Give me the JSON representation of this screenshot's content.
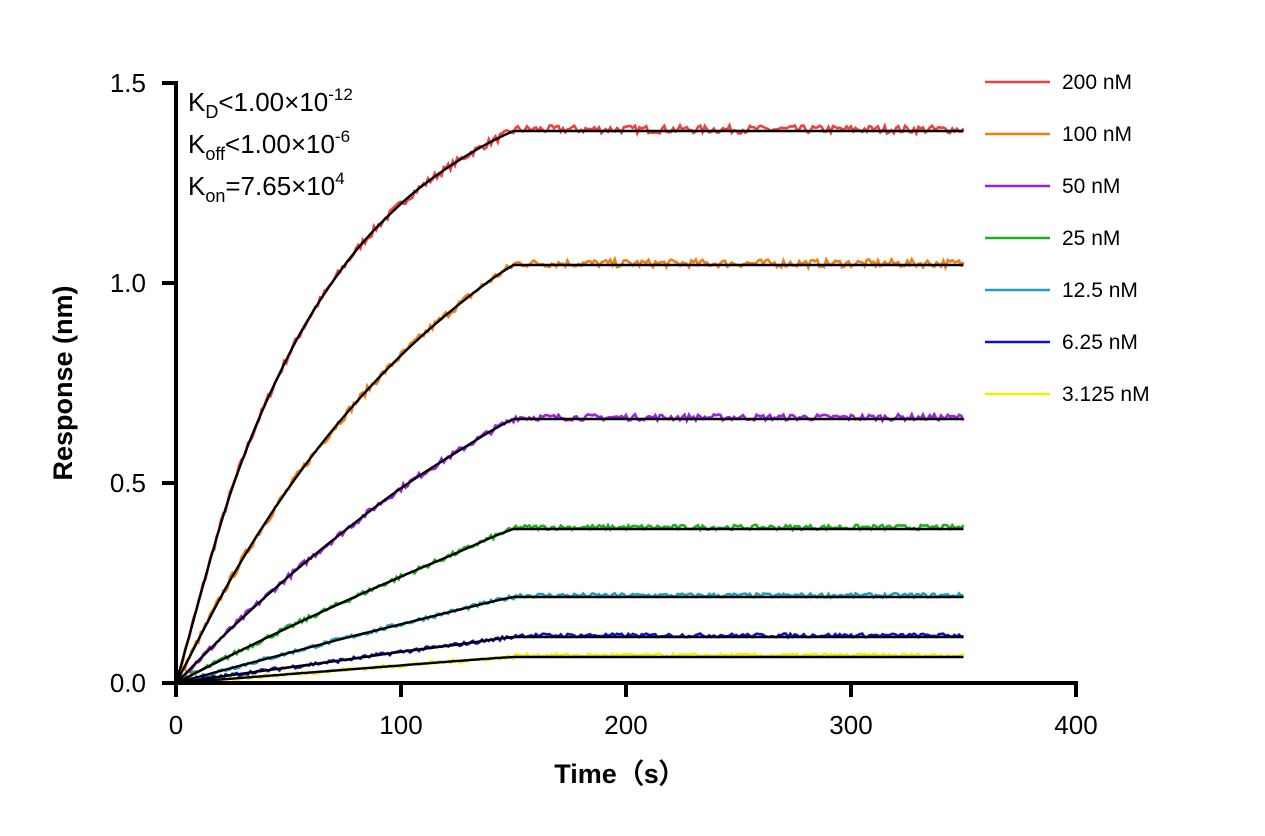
{
  "chart_data": {
    "type": "line",
    "title": "",
    "xlabel": "Time（s）",
    "ylabel": "Response (nm)",
    "xlim": [
      0,
      400
    ],
    "ylim": [
      0,
      1.5
    ],
    "xticks": [
      "0",
      "100",
      "200",
      "300",
      "400"
    ],
    "yticks": [
      "0.0",
      "0.5",
      "1.0",
      "1.5"
    ],
    "grid": false,
    "legend_position": "top-right",
    "association_end_s": 150,
    "annotations": [
      {
        "base": "K",
        "sub": "D",
        "rel": "<1.00×10",
        "sup": "-12"
      },
      {
        "base": "K",
        "sub": "off",
        "rel": "<1.00×10",
        "sup": "-6"
      },
      {
        "base": "K",
        "sub": "on",
        "rel": "=7.65×10",
        "sup": "4"
      }
    ],
    "fit_color": "#000000",
    "x": [
      0,
      25,
      50,
      75,
      100,
      125,
      150,
      200,
      250,
      300,
      350
    ],
    "series": [
      {
        "name": "200 nM",
        "color": "#f04040",
        "values": [
          0,
          0.487,
          0.819,
          1.045,
          1.198,
          1.304,
          1.38,
          1.38,
          1.38,
          1.38,
          1.38
        ]
      },
      {
        "name": "100 nM",
        "color": "#f08010",
        "values": [
          0,
          0.266,
          0.487,
          0.669,
          0.819,
          0.943,
          1.045,
          1.045,
          1.045,
          1.045,
          1.045
        ]
      },
      {
        "name": "50 nM",
        "color": "#a020e0",
        "values": [
          0,
          0.139,
          0.266,
          0.381,
          0.487,
          0.578,
          0.66,
          0.66,
          0.66,
          0.66,
          0.66
        ]
      },
      {
        "name": "25 nM",
        "color": "#20b020",
        "values": [
          0,
          0.071,
          0.139,
          0.204,
          0.266,
          0.326,
          0.385,
          0.385,
          0.385,
          0.385,
          0.385
        ]
      },
      {
        "name": "12.5 nM",
        "color": "#20a0c0",
        "values": [
          0,
          0.038,
          0.075,
          0.112,
          0.147,
          0.182,
          0.215,
          0.215,
          0.215,
          0.215,
          0.215
        ]
      },
      {
        "name": "6.25 nM",
        "color": "#1010d0",
        "values": [
          0,
          0.02,
          0.039,
          0.058,
          0.078,
          0.096,
          0.115,
          0.115,
          0.115,
          0.115,
          0.115
        ]
      },
      {
        "name": "3.125 nM",
        "color": "#f0f000",
        "values": [
          0,
          0.011,
          0.022,
          0.033,
          0.044,
          0.055,
          0.065,
          0.065,
          0.065,
          0.065,
          0.065
        ]
      }
    ]
  }
}
